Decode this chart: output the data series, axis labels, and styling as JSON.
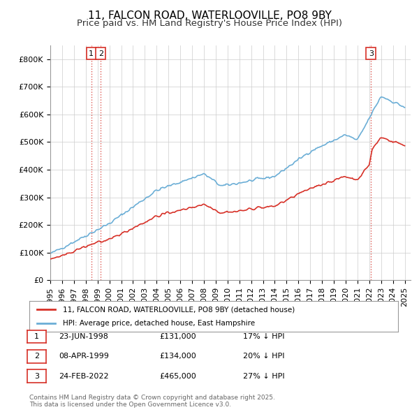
{
  "title": "11, FALCON ROAD, WATERLOOVILLE, PO8 9BY",
  "subtitle": "Price paid vs. HM Land Registry's House Price Index (HPI)",
  "ylabel": "",
  "ylim": [
    0,
    850000
  ],
  "yticks": [
    0,
    100000,
    200000,
    300000,
    400000,
    500000,
    600000,
    700000,
    800000
  ],
  "ytick_labels": [
    "£0",
    "£100K",
    "£200K",
    "£300K",
    "£400K",
    "£500K",
    "£600K",
    "£700K",
    "£800K"
  ],
  "hpi_color": "#6baed6",
  "price_color": "#d73027",
  "vline_color": "#d73027",
  "vline_style": ":",
  "background_color": "#ffffff",
  "grid_color": "#cccccc",
  "sale_dates": [
    "1998-06-23",
    "1999-04-08",
    "2022-02-24"
  ],
  "sale_prices": [
    131000,
    134000,
    465000
  ],
  "sale_labels": [
    "1",
    "2",
    "3"
  ],
  "legend_line1": "11, FALCON ROAD, WATERLOOVILLE, PO8 9BY (detached house)",
  "legend_line2": "HPI: Average price, detached house, East Hampshire",
  "table_data": [
    [
      "1",
      "23-JUN-1998",
      "£131,000",
      "17% ↓ HPI"
    ],
    [
      "2",
      "08-APR-1999",
      "£134,000",
      "20% ↓ HPI"
    ],
    [
      "3",
      "24-FEB-2022",
      "£465,000",
      "27% ↓ HPI"
    ]
  ],
  "footer": "Contains HM Land Registry data © Crown copyright and database right 2025.\nThis data is licensed under the Open Government Licence v3.0.",
  "title_fontsize": 11,
  "subtitle_fontsize": 9.5,
  "tick_fontsize": 8
}
